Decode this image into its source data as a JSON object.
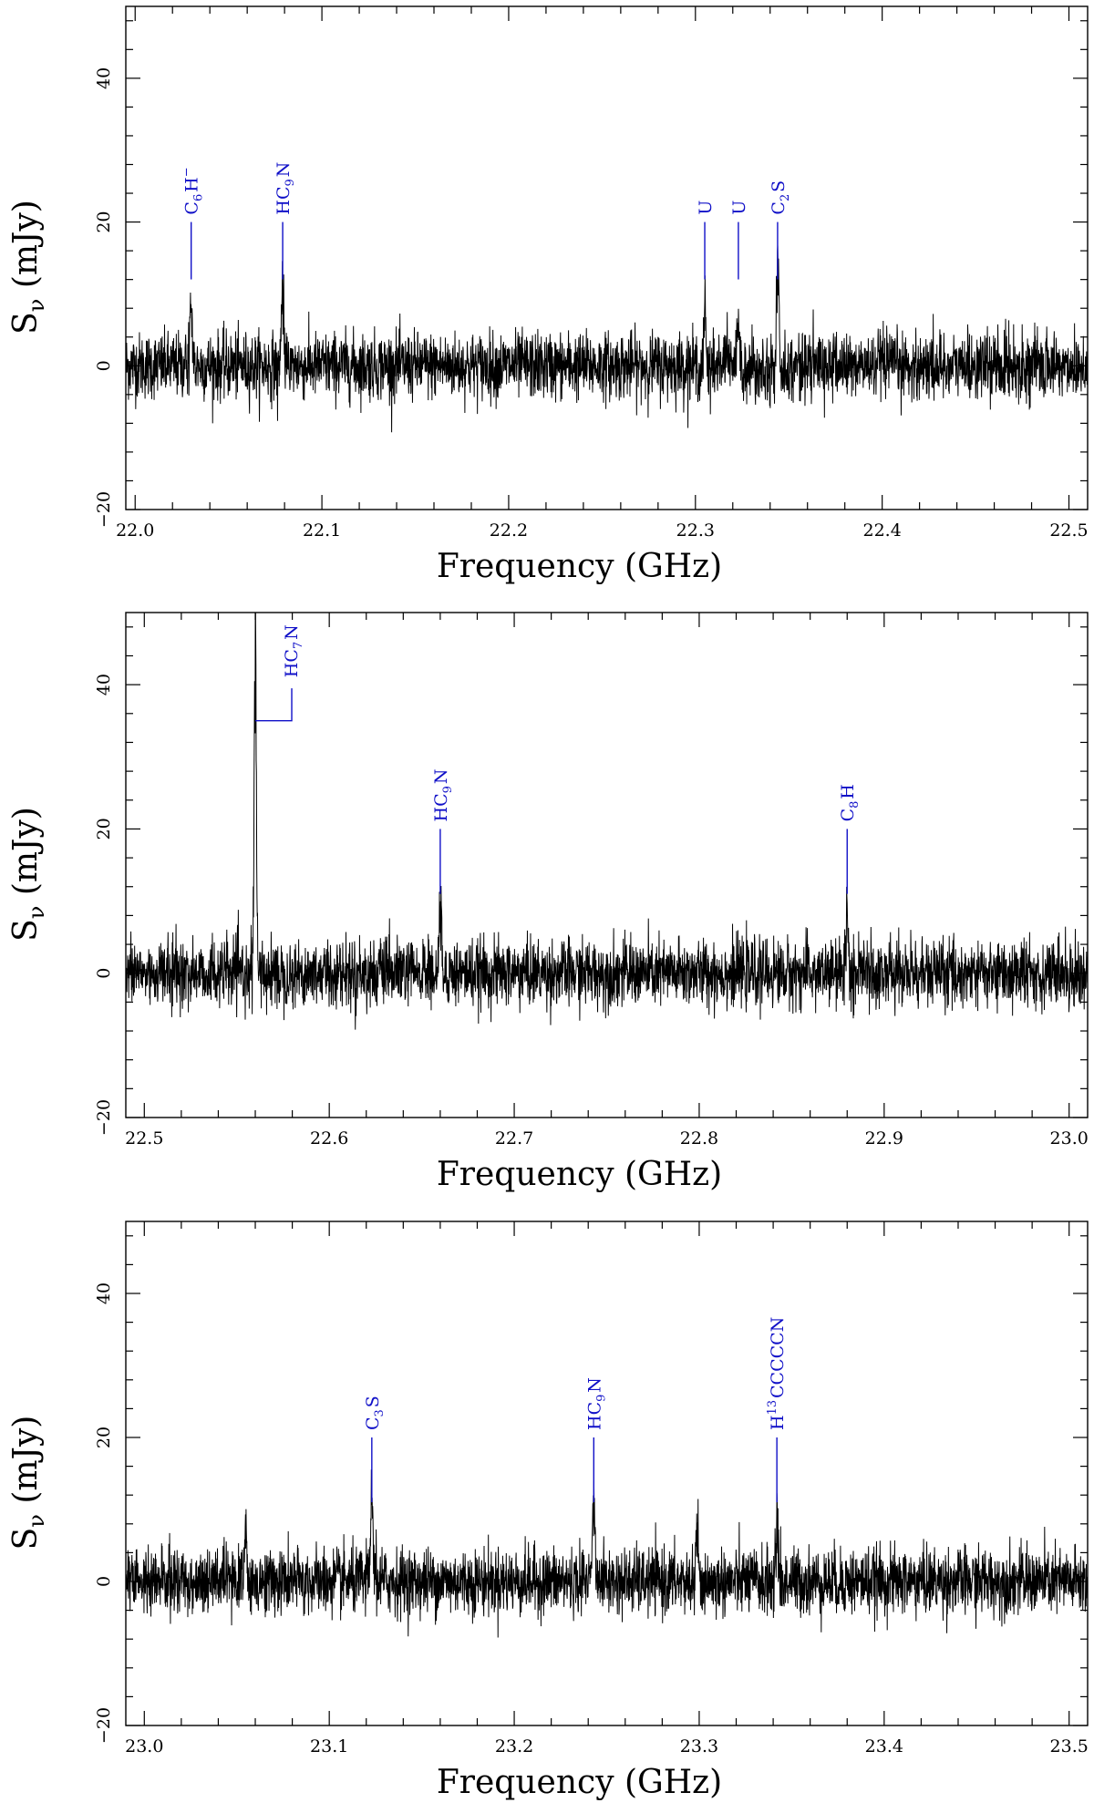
{
  "chart_data": [
    {
      "type": "line",
      "xlabel": "Frequency (GHz)",
      "ylabel": "Sν (mJy)",
      "xlim": [
        21.995,
        22.51
      ],
      "ylim": [
        -20,
        50
      ],
      "xticks": [
        "22.0",
        "22.1",
        "22.2",
        "22.3",
        "22.4",
        "22.5"
      ],
      "yticks": [
        "−20",
        "0",
        "20",
        "40"
      ],
      "noise_rms": 2.3,
      "peaks": [
        {
          "x": 22.03,
          "y": 8.5
        },
        {
          "x": 22.079,
          "y": 11.5
        },
        {
          "x": 22.305,
          "y": 9
        },
        {
          "x": 22.323,
          "y": 6
        },
        {
          "x": 22.344,
          "y": 16.5
        }
      ],
      "labels": [
        {
          "x": 22.03,
          "text": "C₆H⁻"
        },
        {
          "x": 22.079,
          "text": "HC₉N"
        },
        {
          "x": 22.305,
          "text": "U"
        },
        {
          "x": 22.323,
          "text": "U"
        },
        {
          "x": 22.344,
          "text": "C₂S"
        }
      ]
    },
    {
      "type": "line",
      "xlabel": "Frequency (GHz)",
      "ylabel": "Sν (mJy)",
      "xlim": [
        22.49,
        23.01
      ],
      "ylim": [
        -20,
        50
      ],
      "xticks": [
        "22.5",
        "22.6",
        "22.7",
        "22.8",
        "22.9",
        "23.0"
      ],
      "yticks": [
        "−20",
        "0",
        "20",
        "40"
      ],
      "noise_rms": 2.3,
      "peaks": [
        {
          "x": 22.56,
          "y": 50
        },
        {
          "x": 22.66,
          "y": 9.5
        },
        {
          "x": 22.88,
          "y": 9
        }
      ],
      "labels": [
        {
          "x": 22.56,
          "text": "HC₇N"
        },
        {
          "x": 22.66,
          "text": "HC₉N"
        },
        {
          "x": 22.88,
          "text": "C₈H"
        }
      ]
    },
    {
      "type": "line",
      "xlabel": "Frequency (GHz)",
      "ylabel": "Sν (mJy)",
      "xlim": [
        22.99,
        23.51
      ],
      "ylim": [
        -20,
        50
      ],
      "xticks": [
        "23.0",
        "23.1",
        "23.2",
        "23.3",
        "23.4",
        "23.5"
      ],
      "yticks": [
        "−20",
        "0",
        "20",
        "40"
      ],
      "noise_rms": 2.3,
      "peaks": [
        {
          "x": 23.055,
          "y": 7
        },
        {
          "x": 23.123,
          "y": 12
        },
        {
          "x": 23.243,
          "y": 14
        },
        {
          "x": 23.299,
          "y": 7.5
        },
        {
          "x": 23.342,
          "y": 8
        }
      ],
      "labels": [
        {
          "x": 23.123,
          "text": "C₃S"
        },
        {
          "x": 23.243,
          "text": "HC₉N"
        },
        {
          "x": 23.342,
          "text": "H¹³CCCCCN"
        }
      ]
    }
  ]
}
